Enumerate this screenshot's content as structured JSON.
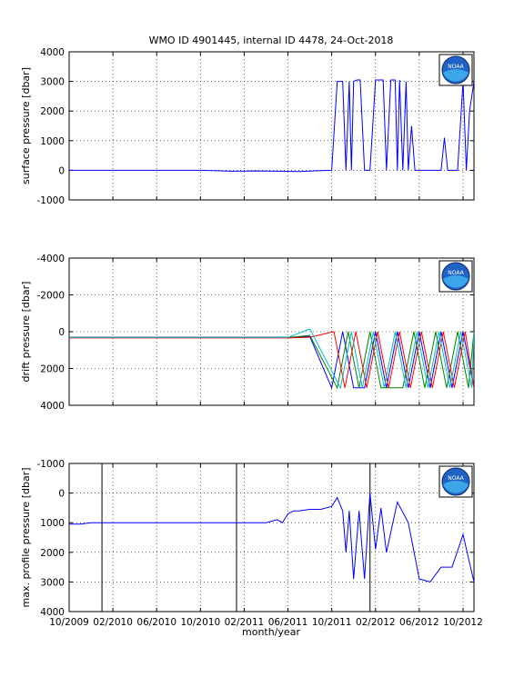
{
  "figure_title": "WMO ID 4901445, internal ID 4478, 24-Oct-2018",
  "xlabel": "month/year",
  "x_ticks": [
    "10/2009",
    "02/2010",
    "06/2010",
    "10/2010",
    "02/2011",
    "06/2011",
    "10/2011",
    "02/2012",
    "06/2012",
    "10/2012"
  ],
  "logo_text": "NOAA",
  "colors": {
    "series_main": "#0000ff",
    "drift_series": [
      "#0000ff",
      "#008000",
      "#ff0000",
      "#00bfbf",
      "#bf00bf",
      "#bfbf00",
      "#404040"
    ],
    "vertical_markers": "#000000"
  },
  "chart_data": [
    {
      "type": "line",
      "title": "WMO ID 4901445, internal ID 4478, 24-Oct-2018",
      "ylabel": "surface pressure [dbar]",
      "xlabel": "",
      "x_unit": "month index since 10/2009",
      "xlim": [
        0,
        37
      ],
      "ylim": [
        -1000,
        4000
      ],
      "y_reversed": false,
      "y_ticks": [
        "-1000",
        "0",
        "1000",
        "2000",
        "3000",
        "4000"
      ],
      "grid": true,
      "series": [
        {
          "x": [
            0.0,
            2.0,
            4.0,
            6.0,
            8.0,
            10.0,
            12.0,
            15.0,
            17.0,
            19.0,
            21.0,
            23.0,
            24.0,
            24.5,
            25.0,
            25.3,
            25.6,
            25.8,
            26.0,
            26.3,
            26.6,
            27.0,
            27.5,
            28.0,
            28.4,
            28.7,
            29.0,
            29.4,
            29.8,
            30.0,
            30.2,
            30.5,
            30.8,
            31.0,
            31.3,
            31.6,
            32.0,
            32.5,
            33.0,
            33.5,
            34.0,
            34.3,
            34.6,
            35.0,
            35.5,
            36.0,
            36.3,
            36.6,
            37.0
          ],
          "y": [
            0,
            0,
            0,
            0,
            0,
            0,
            0,
            -30,
            -20,
            -30,
            -40,
            -10,
            0,
            3000,
            3000,
            0,
            3000,
            0,
            3000,
            3050,
            3050,
            0,
            0,
            3050,
            3050,
            3050,
            0,
            3050,
            3050,
            0,
            3050,
            0,
            3000,
            0,
            1500,
            0,
            0,
            0,
            0,
            0,
            0,
            1100,
            0,
            0,
            0,
            3000,
            0,
            2000,
            3000
          ]
        }
      ]
    },
    {
      "type": "line",
      "title": "",
      "ylabel": "drift pressure [dbar]",
      "xlabel": "",
      "x_unit": "month index since 10/2009",
      "xlim": [
        0,
        37
      ],
      "ylim": [
        -4000,
        4000
      ],
      "y_reversed": true,
      "y_ticks": [
        "-4000",
        "-2000",
        "0",
        "2000",
        "4000"
      ],
      "grid": true,
      "series": [
        {
          "x": [
            0,
            5,
            10,
            15,
            18,
            20,
            22,
            24,
            25,
            26,
            27,
            28,
            29,
            30,
            31,
            32,
            33,
            34,
            35,
            36,
            37
          ],
          "y": [
            300,
            300,
            300,
            300,
            300,
            300,
            260,
            3050,
            0,
            3050,
            3050,
            0,
            3050,
            0,
            3050,
            0,
            3050,
            0,
            3050,
            0,
            3050
          ]
        },
        {
          "x": [
            0,
            5,
            10,
            15,
            18,
            20,
            22,
            24.5,
            25.5,
            26.5,
            27.5,
            28.5,
            29.5,
            30.5,
            31.5,
            32.5,
            33.5,
            34.5,
            35.5,
            36.5,
            37
          ],
          "y": [
            320,
            320,
            320,
            320,
            320,
            320,
            200,
            3050,
            0,
            3050,
            0,
            3050,
            3050,
            3050,
            0,
            3050,
            0,
            3050,
            0,
            3050,
            0
          ]
        },
        {
          "x": [
            0,
            5,
            10,
            15,
            18,
            20,
            22,
            24.2,
            25.2,
            26.2,
            27.2,
            28.2,
            29.2,
            30.2,
            31.2,
            32.2,
            33.2,
            34.2,
            35.2,
            36.2,
            37
          ],
          "y": [
            340,
            340,
            340,
            340,
            340,
            340,
            300,
            0,
            3050,
            0,
            3050,
            0,
            3050,
            0,
            3050,
            0,
            3050,
            0,
            3050,
            0,
            3050
          ]
        },
        {
          "x": [
            0,
            5,
            10,
            15,
            18,
            20,
            22,
            24.8,
            25.8,
            26.8,
            27.8,
            28.8,
            29.8,
            30.8,
            31.8,
            32.8,
            33.8,
            34.8,
            35.8,
            36.8,
            37
          ],
          "y": [
            310,
            310,
            310,
            310,
            310,
            310,
            -150,
            3050,
            0,
            3050,
            0,
            3050,
            0,
            3050,
            0,
            3050,
            0,
            3050,
            0,
            3050,
            0
          ]
        }
      ]
    },
    {
      "type": "line",
      "title": "",
      "ylabel": "max. profile pressure [dbar]",
      "xlabel": "month/year",
      "x_unit": "month index since 10/2009",
      "xlim": [
        0,
        37
      ],
      "ylim": [
        -1000,
        4000
      ],
      "y_reversed": true,
      "y_ticks": [
        "-1000",
        "0",
        "1000",
        "2000",
        "3000",
        "4000"
      ],
      "grid": true,
      "vertical_markers_x": [
        3,
        15.3,
        27.5
      ],
      "series": [
        {
          "x": [
            0.0,
            1.0,
            2.0,
            4.0,
            6.0,
            8.0,
            10.0,
            12.0,
            14.0,
            16.0,
            18.0,
            19.0,
            19.5,
            20.0,
            20.5,
            21.0,
            22.0,
            23.0,
            24.0,
            24.5,
            25.0,
            25.3,
            25.6,
            26.0,
            26.5,
            27.0,
            27.5,
            28.0,
            28.5,
            29.0,
            30.0,
            31.0,
            32.0,
            33.0,
            34.0,
            35.0,
            36.0,
            37.0
          ],
          "y": [
            1050,
            1050,
            1000,
            1000,
            1000,
            1000,
            1000,
            1000,
            1000,
            1000,
            1000,
            900,
            1000,
            700,
            600,
            600,
            550,
            550,
            450,
            150,
            600,
            2000,
            600,
            2900,
            600,
            2900,
            0,
            1900,
            500,
            2000,
            300,
            1000,
            2900,
            3000,
            2500,
            2500,
            1400,
            3000
          ]
        }
      ]
    }
  ]
}
